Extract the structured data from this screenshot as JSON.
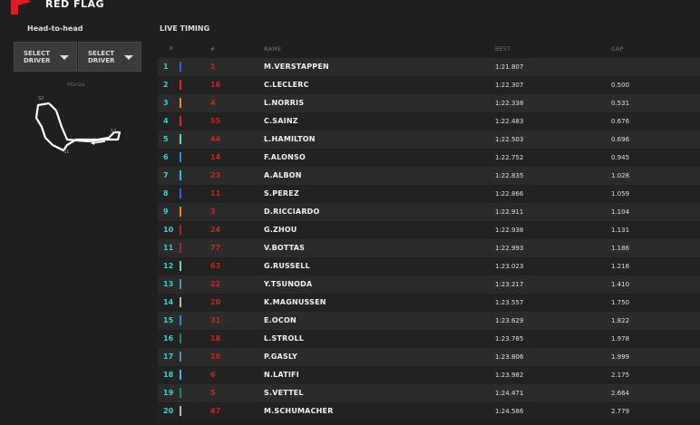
{
  "header": {
    "title": "RED FLAG",
    "flag_color": "#e31b23"
  },
  "head_to_head": {
    "title": "Head-to-head",
    "select1": "SELECT\nDRIVER",
    "select2": "SELECT\nDRIVER"
  },
  "track": {
    "name": "Monza",
    "sectors": [
      "S1",
      "S2",
      "S3"
    ]
  },
  "live_timing": {
    "title": "LIVE TIMING",
    "columns": {
      "pos": "P",
      "num": "#",
      "name": "NAME",
      "best": "BEST",
      "gap": "GAP"
    },
    "rows": [
      {
        "pos": "1",
        "num": "1",
        "name": "M.VERSTAPPEN",
        "best": "1:21.807",
        "gap": "",
        "team_color": "#3a5fd9"
      },
      {
        "pos": "2",
        "num": "16",
        "name": "C.LECLERC",
        "best": "1:22.307",
        "gap": "0.500",
        "team_color": "#e02828"
      },
      {
        "pos": "3",
        "num": "4",
        "name": "L.NORRIS",
        "best": "1:22.338",
        "gap": "0.531",
        "team_color": "#f58a1f"
      },
      {
        "pos": "4",
        "num": "55",
        "name": "C.SAINZ",
        "best": "1:22.483",
        "gap": "0.676",
        "team_color": "#e02828"
      },
      {
        "pos": "5",
        "num": "44",
        "name": "L.HAMILTON",
        "best": "1:22.503",
        "gap": "0.696",
        "team_color": "#6cd3bf"
      },
      {
        "pos": "6",
        "num": "14",
        "name": "F.ALONSO",
        "best": "1:22.752",
        "gap": "0.945",
        "team_color": "#2293d1"
      },
      {
        "pos": "7",
        "num": "23",
        "name": "A.ALBON",
        "best": "1:22.835",
        "gap": "1.028",
        "team_color": "#37bedd"
      },
      {
        "pos": "8",
        "num": "11",
        "name": "S.PEREZ",
        "best": "1:22.866",
        "gap": "1.059",
        "team_color": "#3a5fd9"
      },
      {
        "pos": "9",
        "num": "3",
        "name": "D.RICCIARDO",
        "best": "1:22.911",
        "gap": "1.104",
        "team_color": "#f58a1f"
      },
      {
        "pos": "10",
        "num": "24",
        "name": "G.ZHOU",
        "best": "1:22.938",
        "gap": "1.131",
        "team_color": "#b12039"
      },
      {
        "pos": "11",
        "num": "77",
        "name": "V.BOTTAS",
        "best": "1:22.993",
        "gap": "1.186",
        "team_color": "#b12039"
      },
      {
        "pos": "12",
        "num": "63",
        "name": "G.RUSSELL",
        "best": "1:23.023",
        "gap": "1.216",
        "team_color": "#6cd3bf"
      },
      {
        "pos": "13",
        "num": "22",
        "name": "Y.TSUNODA",
        "best": "1:23.217",
        "gap": "1.410",
        "team_color": "#5e8faa"
      },
      {
        "pos": "14",
        "num": "20",
        "name": "K.MAGNUSSEN",
        "best": "1:23.557",
        "gap": "1.750",
        "team_color": "#b6babd"
      },
      {
        "pos": "15",
        "num": "31",
        "name": "E.OCON",
        "best": "1:23.629",
        "gap": "1.822",
        "team_color": "#2293d1"
      },
      {
        "pos": "16",
        "num": "18",
        "name": "L.STROLL",
        "best": "1:23.785",
        "gap": "1.978",
        "team_color": "#2d826d"
      },
      {
        "pos": "17",
        "num": "10",
        "name": "P.GASLY",
        "best": "1:23.806",
        "gap": "1.999",
        "team_color": "#5e8faa"
      },
      {
        "pos": "18",
        "num": "6",
        "name": "N.LATIFI",
        "best": "1:23.982",
        "gap": "2.175",
        "team_color": "#37bedd"
      },
      {
        "pos": "19",
        "num": "5",
        "name": "S.VETTEL",
        "best": "1:24.471",
        "gap": "2.664",
        "team_color": "#2d826d"
      },
      {
        "pos": "20",
        "num": "47",
        "name": "M.SCHUMACHER",
        "best": "1:24.586",
        "gap": "2.779",
        "team_color": "#b6babd"
      }
    ]
  }
}
